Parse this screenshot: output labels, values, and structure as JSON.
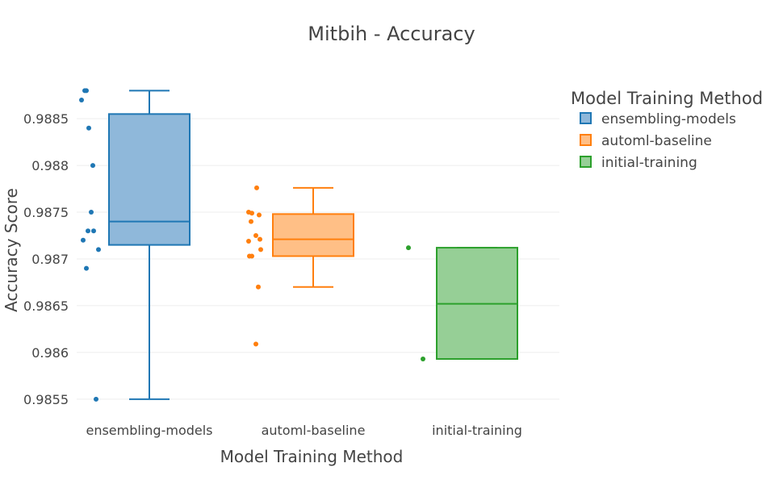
{
  "chart_data": {
    "type": "box",
    "title": "Mitbih - Accuracy",
    "xlabel": "Model Training Method",
    "ylabel": "Accuracy Score",
    "categories": [
      "ensembling-models",
      "automl-baseline",
      "initial-training"
    ],
    "ylim": [
      0.9853,
      0.98895
    ],
    "yticks": [
      0.9855,
      0.986,
      0.9865,
      0.987,
      0.9875,
      0.988,
      0.9885
    ],
    "ytick_labels": [
      "0.9855",
      "0.986",
      "0.9865",
      "0.987",
      "0.9875",
      "0.988",
      "0.9885"
    ],
    "grid": true,
    "legend": {
      "title": "Model Training Method",
      "position": "top-right"
    },
    "series": [
      {
        "name": "ensembling-models",
        "color": "#1f77b4",
        "fill": "#8fb8da",
        "box": {
          "min": 0.9855,
          "q1": 0.98715,
          "median": 0.9874,
          "q3": 0.98855,
          "max": 0.9888
        },
        "points": [
          0.9888,
          0.9888,
          0.9887,
          0.9884,
          0.988,
          0.9875,
          0.9873,
          0.9873,
          0.9872,
          0.9871,
          0.9869,
          0.9855
        ]
      },
      {
        "name": "automl-baseline",
        "color": "#ff7f0e",
        "fill": "#ffbf86",
        "box": {
          "min": 0.9867,
          "q1": 0.98703,
          "median": 0.98721,
          "q3": 0.98748,
          "max": 0.98776
        },
        "points": [
          0.98776,
          0.9875,
          0.98749,
          0.98747,
          0.9874,
          0.98725,
          0.98721,
          0.98719,
          0.9871,
          0.98703,
          0.98703,
          0.9867,
          0.98609
        ]
      },
      {
        "name": "initial-training",
        "color": "#2ca02c",
        "fill": "#96cf96",
        "box": {
          "min": 0.98593,
          "q1": 0.98593,
          "median": 0.98652,
          "q3": 0.98712,
          "max": 0.98712
        },
        "points": [
          0.98712,
          0.98593
        ]
      }
    ]
  }
}
